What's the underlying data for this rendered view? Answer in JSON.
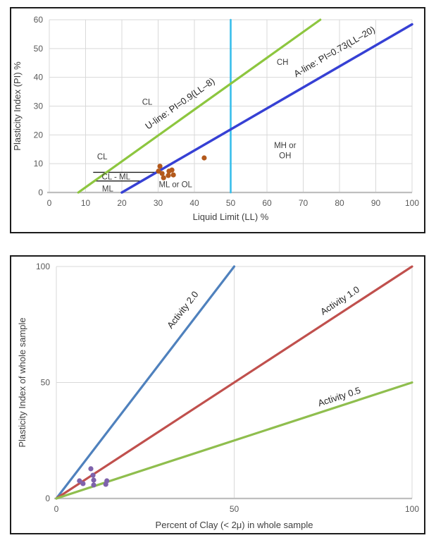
{
  "page": {
    "background": "#ffffff",
    "frame_border_color": "#1c1c1c",
    "gridline_color": "#d9d9d9",
    "axis_line_color": "#bfbfbf",
    "tick_text_color": "#595959"
  },
  "chart_data": [
    {
      "id": "plasticity-chart",
      "type": "scatter",
      "title": "",
      "xlabel": "Liquid Limit (LL) %",
      "ylabel": "Plasticity Index (PI) %",
      "xlim": [
        0,
        100
      ],
      "ylim": [
        0,
        60
      ],
      "x_ticks": [
        0,
        10,
        20,
        30,
        40,
        50,
        60,
        70,
        80,
        90,
        100
      ],
      "y_ticks": [
        0,
        10,
        20,
        30,
        40,
        50,
        60
      ],
      "grid": "all-ticks",
      "ref_lines": [
        {
          "name": "cl-ml-upper-boundary",
          "color": "#1f1f1f",
          "width": 1.4,
          "from": [
            12.2,
            7
          ],
          "to": [
            29.6,
            7
          ]
        },
        {
          "name": "cl-ml-lower-boundary",
          "color": "#1f1f1f",
          "width": 1.4,
          "from": [
            12.6,
            4
          ],
          "to": [
            25.5,
            4
          ]
        },
        {
          "name": "ll-50-boundary",
          "color": "#38beeb",
          "width": 2.6,
          "from": [
            50,
            0
          ],
          "to": [
            50,
            60
          ]
        },
        {
          "name": "u-line",
          "color": "#8dc63f",
          "width": 3.2,
          "from": [
            8,
            0
          ],
          "to": [
            74.7,
            60
          ],
          "label": "U-line: PI=0.9(LL–8)",
          "label_at": [
            36.5,
            30.0
          ],
          "label_rotation": -35
        },
        {
          "name": "a-line",
          "color": "#3640d4",
          "width": 3.5,
          "from": [
            20,
            0
          ],
          "to": [
            100,
            58.4
          ],
          "label": "A-line: PI=0.73(LL–20)",
          "label_at": [
            79,
            48.0
          ],
          "label_rotation": -30
        }
      ],
      "zone_labels": [
        {
          "text": "CL",
          "at": [
            27,
            31.5
          ]
        },
        {
          "text": "CH",
          "at": [
            64.3,
            45.3
          ]
        },
        {
          "text": "CL",
          "at": [
            14.6,
            12.5
          ]
        },
        {
          "text": "MH or",
          "at": [
            65,
            16.4
          ]
        },
        {
          "text": "OH",
          "at": [
            65,
            12.8
          ]
        },
        {
          "text": "CL - ML",
          "at": [
            18.4,
            5.5
          ]
        },
        {
          "text": "ML",
          "at": [
            16.1,
            1.4
          ]
        },
        {
          "text": "ML or OL",
          "at": [
            34.8,
            2.8
          ]
        }
      ],
      "series": [
        {
          "name": "soil-samples",
          "color": "#b3591b",
          "marker_radius": 3.6,
          "points": [
            [
              30.1,
              7.4
            ],
            [
              30.5,
              9.1
            ],
            [
              31.1,
              6.6
            ],
            [
              31.5,
              5.1
            ],
            [
              32.8,
              5.9
            ],
            [
              33.0,
              7.4
            ],
            [
              33.8,
              7.8
            ],
            [
              34.2,
              6.1
            ],
            [
              42.7,
              12.0
            ]
          ]
        }
      ]
    },
    {
      "id": "activity-chart",
      "type": "scatter",
      "title": "",
      "xlabel": "Percent of Clay (< 2μ) in whole sample",
      "ylabel": "Plasticity Index of whole sample",
      "xlim": [
        0,
        100
      ],
      "ylim": [
        0,
        100
      ],
      "x_ticks": [
        0,
        50,
        100
      ],
      "y_ticks": [
        0,
        50,
        100
      ],
      "grid": "all-ticks",
      "ref_lines": [
        {
          "name": "activity-2.0-line",
          "color": "#4f81bd",
          "width": 3.2,
          "from": [
            0,
            0
          ],
          "to": [
            50,
            100
          ],
          "label": "Activity 2.0",
          "label_at": [
            36.2,
            80.5
          ],
          "label_rotation": -52
        },
        {
          "name": "activity-1.0-line",
          "color": "#c0504d",
          "width": 3.2,
          "from": [
            0,
            0
          ],
          "to": [
            100,
            100
          ],
          "label": "Activity 1.0",
          "label_at": [
            80.2,
            84.2
          ],
          "label_rotation": -33
        },
        {
          "name": "activity-0.5-line",
          "color": "#8fbe4e",
          "width": 3.2,
          "from": [
            0,
            0
          ],
          "to": [
            100,
            50
          ],
          "label": "Activity 0.5",
          "label_at": [
            79.8,
            42.6
          ],
          "label_rotation": -18
        }
      ],
      "zone_labels": [],
      "series": [
        {
          "name": "soil-samples",
          "color": "#7e62ab",
          "marker_radius": 3.6,
          "points": [
            [
              6.5,
              7.6
            ],
            [
              7.5,
              6.4
            ],
            [
              9.7,
              12.8
            ],
            [
              10.3,
              10.0
            ],
            [
              10.5,
              7.9
            ],
            [
              10.5,
              5.8
            ],
            [
              13.9,
              6.1
            ],
            [
              14.2,
              7.6
            ]
          ]
        }
      ]
    }
  ]
}
